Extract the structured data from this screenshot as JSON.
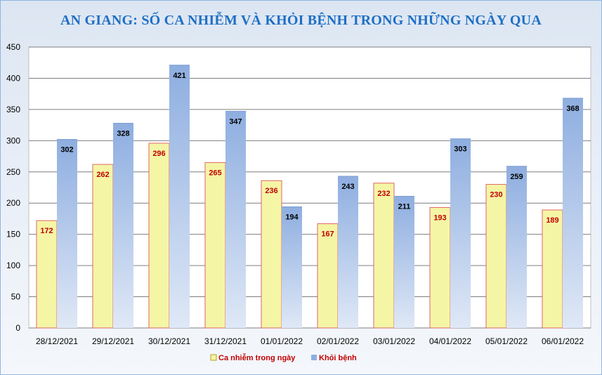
{
  "chart_data": {
    "type": "bar",
    "title": "AN GIANG: SỐ CA NHIỄM VÀ KHỎI BỆNH TRONG NHỮNG NGÀY QUA",
    "xlabel": "",
    "ylabel": "",
    "ylim": [
      0,
      450
    ],
    "yticks": [
      0,
      50,
      100,
      150,
      200,
      250,
      300,
      350,
      400,
      450
    ],
    "grid": true,
    "legend_position": "bottom",
    "categories": [
      "28/12/2021",
      "29/12/2021",
      "30/12/2021",
      "31/12/2021",
      "01/01/2022",
      "02/01/2022",
      "03/01/2022",
      "04/01/2022",
      "05/01/2022",
      "06/01/2022"
    ],
    "series": [
      {
        "name": "Ca nhiễm trong ngày",
        "values": [
          172,
          262,
          296,
          265,
          236,
          167,
          232,
          193,
          230,
          189
        ],
        "fill": "#f5f5a6",
        "stroke": "#e06666",
        "label_color": "#c00000"
      },
      {
        "name": "Khỏi bệnh",
        "values": [
          302,
          328,
          421,
          347,
          194,
          243,
          211,
          303,
          259,
          368
        ],
        "fill": "#8eaee0",
        "stroke": "#8eaee0",
        "label_color": "#000000"
      }
    ]
  }
}
